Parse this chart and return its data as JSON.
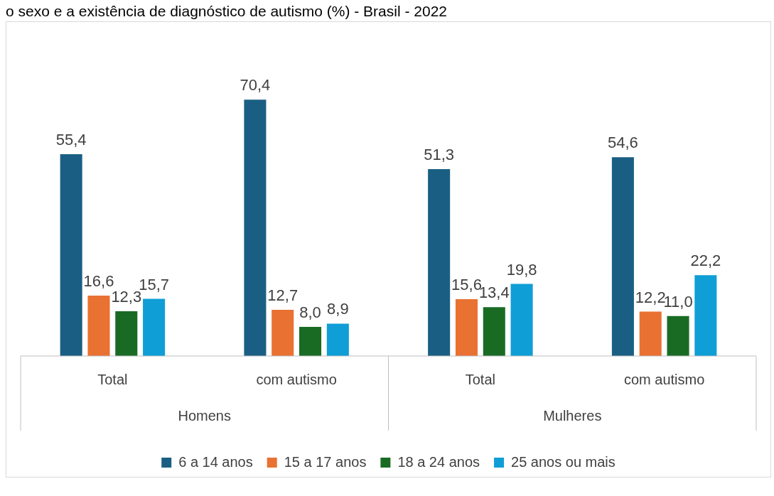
{
  "chart_data": {
    "type": "bar",
    "title": "o sexo e a existência de diagnóstico de autismo (%) - Brasil - 2022",
    "categories": [
      "Total",
      "com autismo",
      "Total",
      "com autismo"
    ],
    "annotations": [
      "Homens",
      "Mulheres"
    ],
    "series": [
      {
        "name": "6 a 14 anos",
        "color": "#1a5f83",
        "values": [
          55.4,
          70.4,
          51.3,
          54.6
        ],
        "value_labels": [
          "55,4",
          "70,4",
          "51,3",
          "54,6"
        ]
      },
      {
        "name": "15 a 17 anos",
        "color": "#e97132",
        "values": [
          16.6,
          12.7,
          15.6,
          12.2
        ],
        "value_labels": [
          "16,6",
          "12,7",
          "15,6",
          "12,2"
        ]
      },
      {
        "name": "18 a 24 anos",
        "color": "#196b24",
        "values": [
          12.3,
          8.0,
          13.4,
          11.0
        ],
        "value_labels": [
          "12,3",
          "8,0",
          "13,4",
          "11,0"
        ]
      },
      {
        "name": "25 anos ou mais",
        "color": "#0f9ed5",
        "values": [
          15.7,
          8.9,
          19.8,
          22.2
        ],
        "value_labels": [
          "15,7",
          "8,9",
          "19,8",
          "22,2"
        ]
      }
    ],
    "legend": "bottom"
  }
}
